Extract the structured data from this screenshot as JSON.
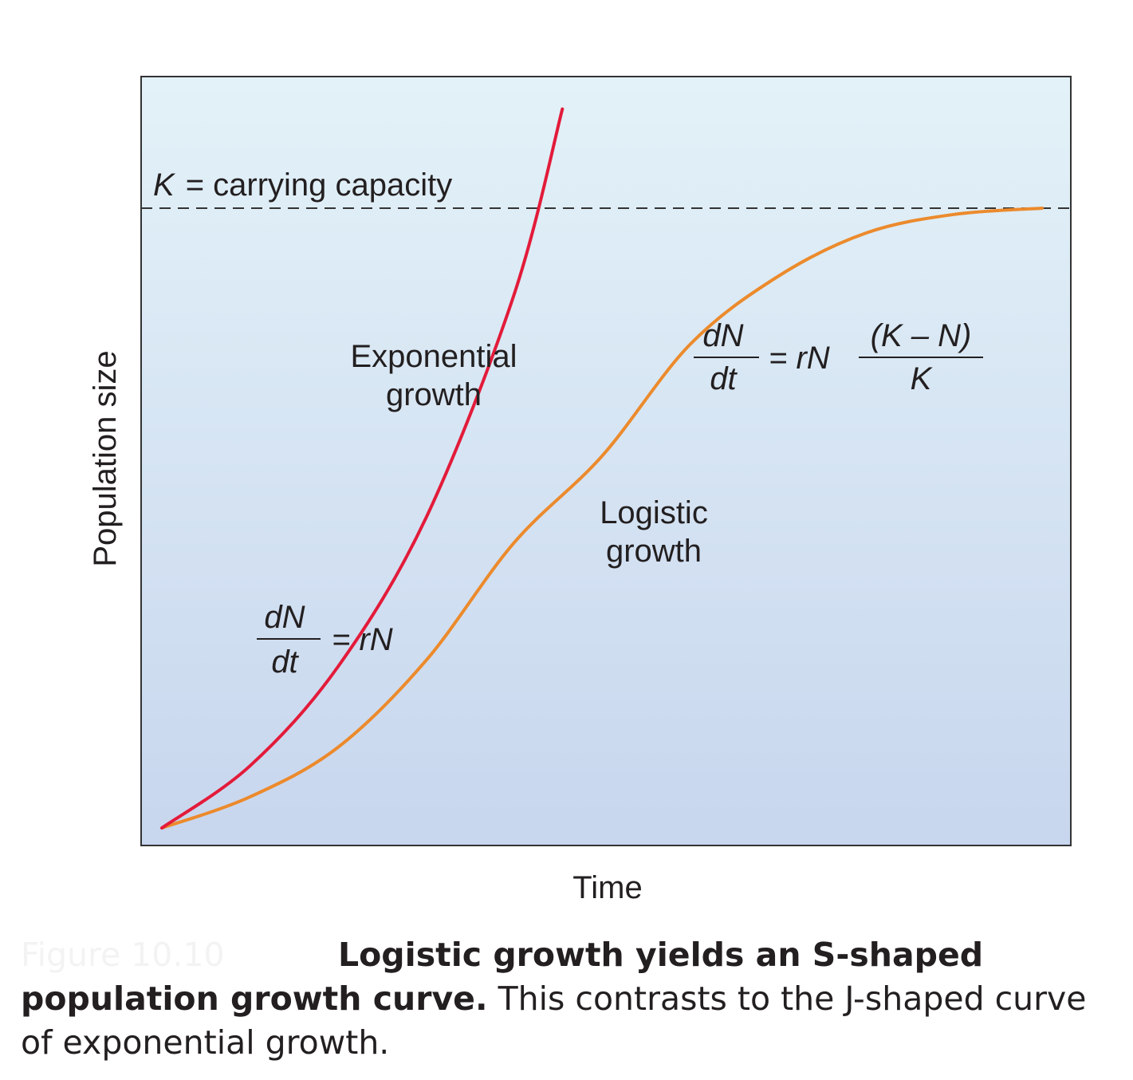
{
  "chart_data": {
    "type": "line",
    "xlabel": "Time",
    "ylabel": "Population size",
    "x_ticks": [],
    "y_ticks": [],
    "grid": false,
    "carrying_capacity": {
      "label_var": "K",
      "label_rest": "= carrying capacity",
      "value": 1.0
    },
    "series": [
      {
        "name": "Exponential growth",
        "label_line1": "Exponential",
        "label_line2": "growth",
        "color": "#e31b3a",
        "equation": {
          "num": "dN",
          "den": "dt",
          "rhs": "= rN"
        },
        "x": [
          0.0,
          0.1,
          0.2,
          0.3,
          0.4,
          0.455
        ],
        "y": [
          0.0,
          0.1,
          0.26,
          0.5,
          0.86,
          1.16
        ]
      },
      {
        "name": "Logistic growth",
        "label_line1": "Logistic",
        "label_line2": "growth",
        "color": "#ec8a2c",
        "equation": {
          "num": "dN",
          "den": "dt",
          "rhs": "= rN",
          "frac_num": "(K – N)",
          "frac_den": "K"
        },
        "x": [
          0.0,
          0.1,
          0.2,
          0.3,
          0.4,
          0.5,
          0.6,
          0.7,
          0.8,
          0.9,
          1.0
        ],
        "y": [
          0.0,
          0.05,
          0.13,
          0.27,
          0.46,
          0.6,
          0.78,
          0.89,
          0.96,
          0.99,
          1.0
        ]
      }
    ]
  },
  "caption": {
    "figure_label": "Figure 10.10",
    "bold_text": "Logistic growth yields an S-shaped population growth curve.",
    "rest_text": " This contrasts to the J-shaped curve of exponential growth."
  },
  "colors": {
    "plot_bg_top": "#e3f2f8",
    "plot_bg_bottom": "#c8d6ee",
    "frame": "#333333",
    "text": "#231f20"
  }
}
